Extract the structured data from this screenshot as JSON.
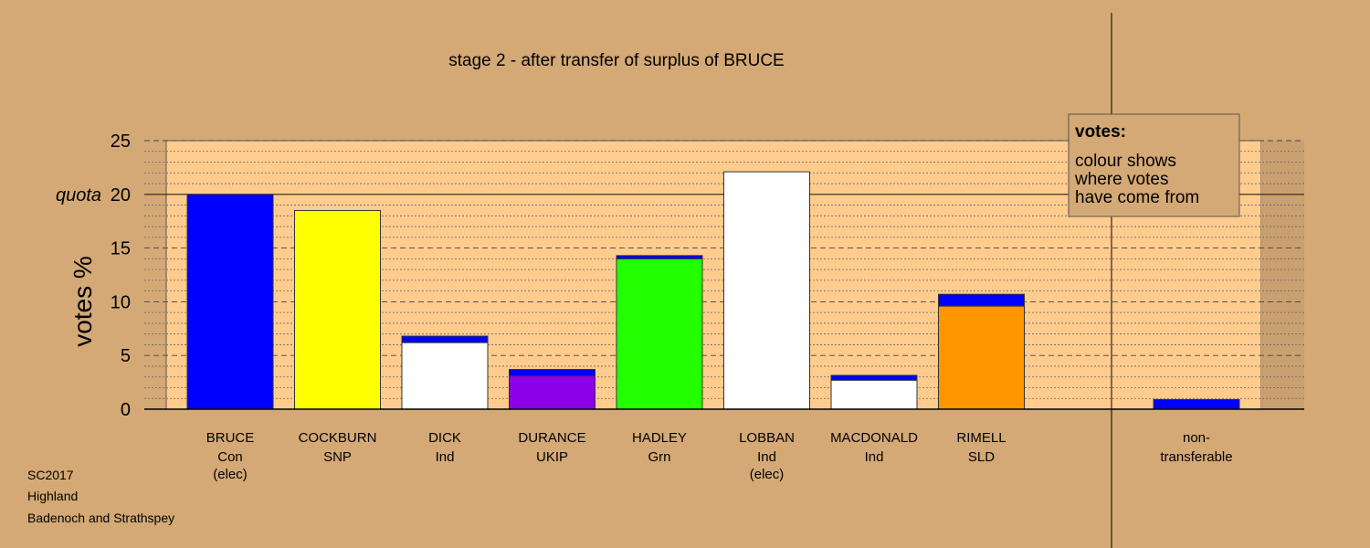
{
  "chart_data": {
    "type": "bar",
    "title": "stage 2 - after transfer of surplus of BRUCE",
    "ylabel": "votes %",
    "ylim": [
      0,
      25
    ],
    "y_ticks": [
      0,
      5,
      10,
      15,
      20,
      25
    ],
    "quota": 20,
    "quota_label": "quota",
    "grid": true,
    "legend_position": "top-right",
    "legend": {
      "title": "votes:",
      "lines": [
        "colour shows",
        "where votes",
        "have come from"
      ]
    },
    "categories": [
      {
        "name": "BRUCE",
        "party": "Con",
        "note": "(elec)"
      },
      {
        "name": "COCKBURN",
        "party": "SNP",
        "note": ""
      },
      {
        "name": "DICK",
        "party": "Ind",
        "note": ""
      },
      {
        "name": "DURANCE",
        "party": "UKIP",
        "note": ""
      },
      {
        "name": "HADLEY",
        "party": "Grn",
        "note": ""
      },
      {
        "name": "LOBBAN",
        "party": "Ind",
        "note": "(elec)"
      },
      {
        "name": "MACDONALD",
        "party": "Ind",
        "note": ""
      },
      {
        "name": "RIMELL",
        "party": "SLD",
        "note": ""
      }
    ],
    "bars": [
      {
        "segments": [
          {
            "value": 20.0,
            "color": "#0000ff"
          }
        ]
      },
      {
        "segments": [
          {
            "value": 18.5,
            "color": "#ffff00"
          }
        ]
      },
      {
        "segments": [
          {
            "value": 6.2,
            "color": "#ffffff"
          },
          {
            "value": 0.6,
            "color": "#0000ff"
          }
        ]
      },
      {
        "segments": [
          {
            "value": 3.1,
            "color": "#8b00e6"
          },
          {
            "value": 0.6,
            "color": "#0000ff"
          }
        ]
      },
      {
        "segments": [
          {
            "value": 14.0,
            "color": "#22ff00"
          },
          {
            "value": 0.3,
            "color": "#0000ff"
          }
        ]
      },
      {
        "segments": [
          {
            "value": 22.1,
            "color": "#ffffff"
          }
        ]
      },
      {
        "segments": [
          {
            "value": 2.7,
            "color": "#ffffff"
          },
          {
            "value": 0.45,
            "color": "#0000ff"
          }
        ]
      },
      {
        "segments": [
          {
            "value": 9.6,
            "color": "#ff9600"
          },
          {
            "value": 1.1,
            "color": "#0000ff"
          }
        ]
      }
    ],
    "non_transferable": {
      "label_line1": "non-",
      "label_line2": "transferable",
      "value": 0.9,
      "color": "#0000ff"
    }
  },
  "colors": {
    "background": "#d4a975",
    "plot_area": "#ffcc8e",
    "right_shade": "#c9a070"
  },
  "footer": {
    "line1": "SC2017",
    "line2": "Highland",
    "line3": "Badenoch and Strathspey"
  }
}
